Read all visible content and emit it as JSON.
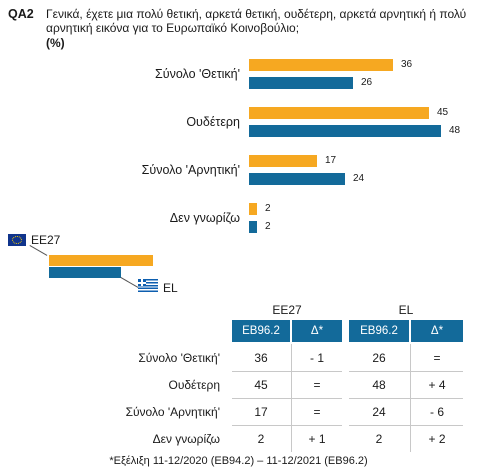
{
  "question": {
    "code": "QA2",
    "text": "Γενικά, έχετε μια πολύ θετική, αρκετά θετική, ουδέτερη, αρκετά αρνητική ή πολύ αρνητική εικόνα για το Ευρωπαϊκό Κοινοβούλιο;",
    "unit": "(%)"
  },
  "chart_data": {
    "type": "bar",
    "orientation": "horizontal",
    "title": "Γενικά, έχετε μια πολύ θετική, αρκετά θετική, ουδέτερη, αρκετά αρνητική ή πολύ αρνητική εικόνα για το Ευρωπαϊκό Κοινοβούλιο;",
    "unit": "(%)",
    "categories": [
      "Σύνολο 'Θετική'",
      "Ουδέτερη",
      "Σύνολο 'Αρνητική'",
      "Δεν γνωρίζω"
    ],
    "series": [
      {
        "name": "ΕΕ27",
        "color": "#f6a821",
        "values": [
          36,
          45,
          17,
          2
        ]
      },
      {
        "name": "EL",
        "color": "#136a9a",
        "values": [
          26,
          48,
          24,
          2
        ]
      }
    ],
    "xlim": [
      0,
      50
    ],
    "grid": false,
    "legend": "left"
  },
  "legend": {
    "eu_label": "ΕΕ27",
    "el_label": "EL",
    "eu_icon": "eu-flag-icon",
    "el_icon": "greek-flag-icon"
  },
  "table": {
    "groups": [
      "ΕΕ27",
      "EL"
    ],
    "col_headers": [
      "EB96.2",
      "Δ*",
      "EB96.2",
      "Δ*"
    ],
    "rows": [
      {
        "label": "Σύνολο 'Θετική'",
        "cells": [
          "36",
          "- 1",
          "26",
          "="
        ]
      },
      {
        "label": "Ουδέτερη",
        "cells": [
          "45",
          "=",
          "48",
          "+ 4"
        ]
      },
      {
        "label": "Σύνολο 'Αρνητική'",
        "cells": [
          "17",
          "=",
          "24",
          "- 6"
        ]
      },
      {
        "label": "Δεν γνωρίζω",
        "cells": [
          "2",
          "+ 1",
          "2",
          "+ 2"
        ]
      }
    ]
  },
  "footnote": "*Εξέλιξη 11-12/2020 (EB94.2) – 11-12/2021 (EB96.2)"
}
